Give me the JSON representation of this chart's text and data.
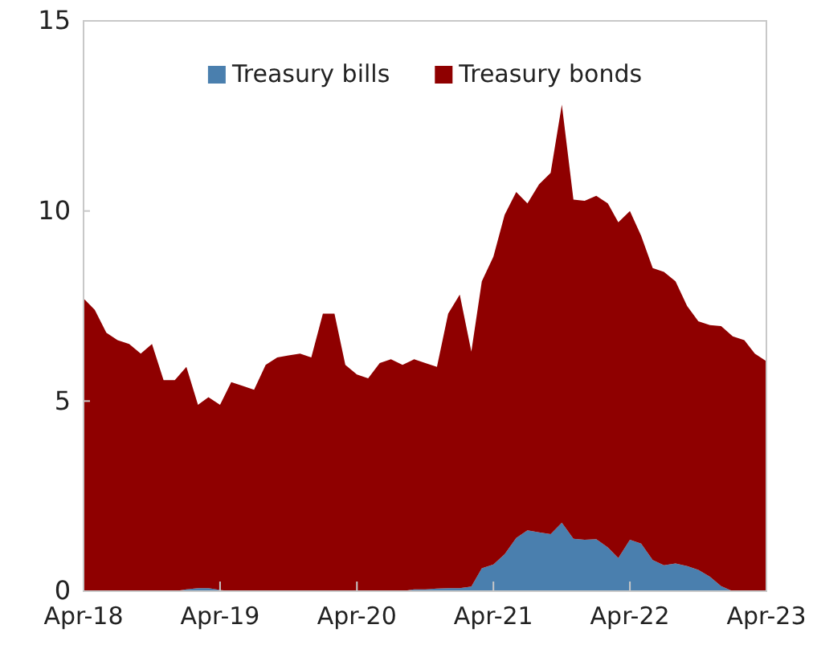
{
  "chart_data": {
    "type": "area",
    "stacked": true,
    "legend": "top",
    "grid": false,
    "x": [
      "2018-04",
      "2018-05",
      "2018-06",
      "2018-07",
      "2018-08",
      "2018-09",
      "2018-10",
      "2018-11",
      "2018-12",
      "2019-01",
      "2019-02",
      "2019-03",
      "2019-04",
      "2019-05",
      "2019-06",
      "2019-07",
      "2019-08",
      "2019-09",
      "2019-10",
      "2019-11",
      "2019-12",
      "2020-01",
      "2020-02",
      "2020-03",
      "2020-04",
      "2020-05",
      "2020-06",
      "2020-07",
      "2020-08",
      "2020-09",
      "2020-10",
      "2020-11",
      "2020-12",
      "2021-01",
      "2021-02",
      "2021-03",
      "2021-04",
      "2021-05",
      "2021-06",
      "2021-07",
      "2021-08",
      "2021-09",
      "2021-10",
      "2021-11",
      "2021-12",
      "2022-01",
      "2022-02",
      "2022-03",
      "2022-04",
      "2022-05",
      "2022-06",
      "2022-07",
      "2022-08",
      "2022-09",
      "2022-10",
      "2022-11",
      "2022-12",
      "2023-01",
      "2023-02",
      "2023-03",
      "2023-04"
    ],
    "xlim": [
      "2018-04",
      "2023-04"
    ],
    "xticks": [
      {
        "value": "2018-04",
        "label": "Apr-18"
      },
      {
        "value": "2019-04",
        "label": "Apr-19"
      },
      {
        "value": "2020-04",
        "label": "Apr-20"
      },
      {
        "value": "2021-04",
        "label": "Apr-21"
      },
      {
        "value": "2022-04",
        "label": "Apr-22"
      },
      {
        "value": "2023-04",
        "label": "Apr-23"
      }
    ],
    "ylim": [
      0,
      15
    ],
    "yticks": [
      0,
      5,
      10,
      15
    ],
    "series": [
      {
        "name": "Treasury bills",
        "color": "#4a7fae",
        "values": [
          0,
          0,
          0,
          0,
          0,
          0,
          0,
          0,
          0,
          0.05,
          0.08,
          0.08,
          0.03,
          0,
          0,
          0,
          0,
          0,
          0,
          0,
          0,
          0,
          0,
          0,
          0,
          0,
          0,
          0,
          0,
          0.05,
          0.05,
          0.07,
          0.08,
          0.08,
          0.12,
          0.6,
          0.7,
          0.97,
          1.4,
          1.6,
          1.55,
          1.5,
          1.8,
          1.38,
          1.35,
          1.37,
          1.15,
          0.87,
          1.35,
          1.25,
          0.82,
          0.68,
          0.73,
          0.66,
          0.56,
          0.38,
          0.13,
          0,
          0,
          0,
          0
        ]
      },
      {
        "name": "Treasury bonds",
        "color": "#8f0000",
        "values": [
          7.7,
          7.4,
          6.8,
          6.6,
          6.5,
          6.25,
          6.5,
          5.55,
          5.55,
          5.85,
          4.82,
          5.02,
          4.87,
          5.5,
          5.4,
          5.3,
          5.95,
          6.15,
          6.2,
          6.25,
          6.15,
          7.3,
          7.3,
          5.95,
          5.7,
          5.6,
          6.0,
          6.1,
          5.95,
          6.05,
          5.95,
          5.83,
          7.22,
          7.72,
          6.18,
          7.55,
          8.1,
          8.93,
          9.1,
          8.6,
          9.15,
          9.5,
          11.0,
          8.92,
          8.92,
          9.03,
          9.05,
          8.83,
          8.65,
          8.1,
          7.68,
          7.72,
          7.42,
          6.84,
          6.54,
          6.62,
          6.84,
          6.7,
          6.6,
          6.25,
          6.05
        ]
      }
    ]
  }
}
